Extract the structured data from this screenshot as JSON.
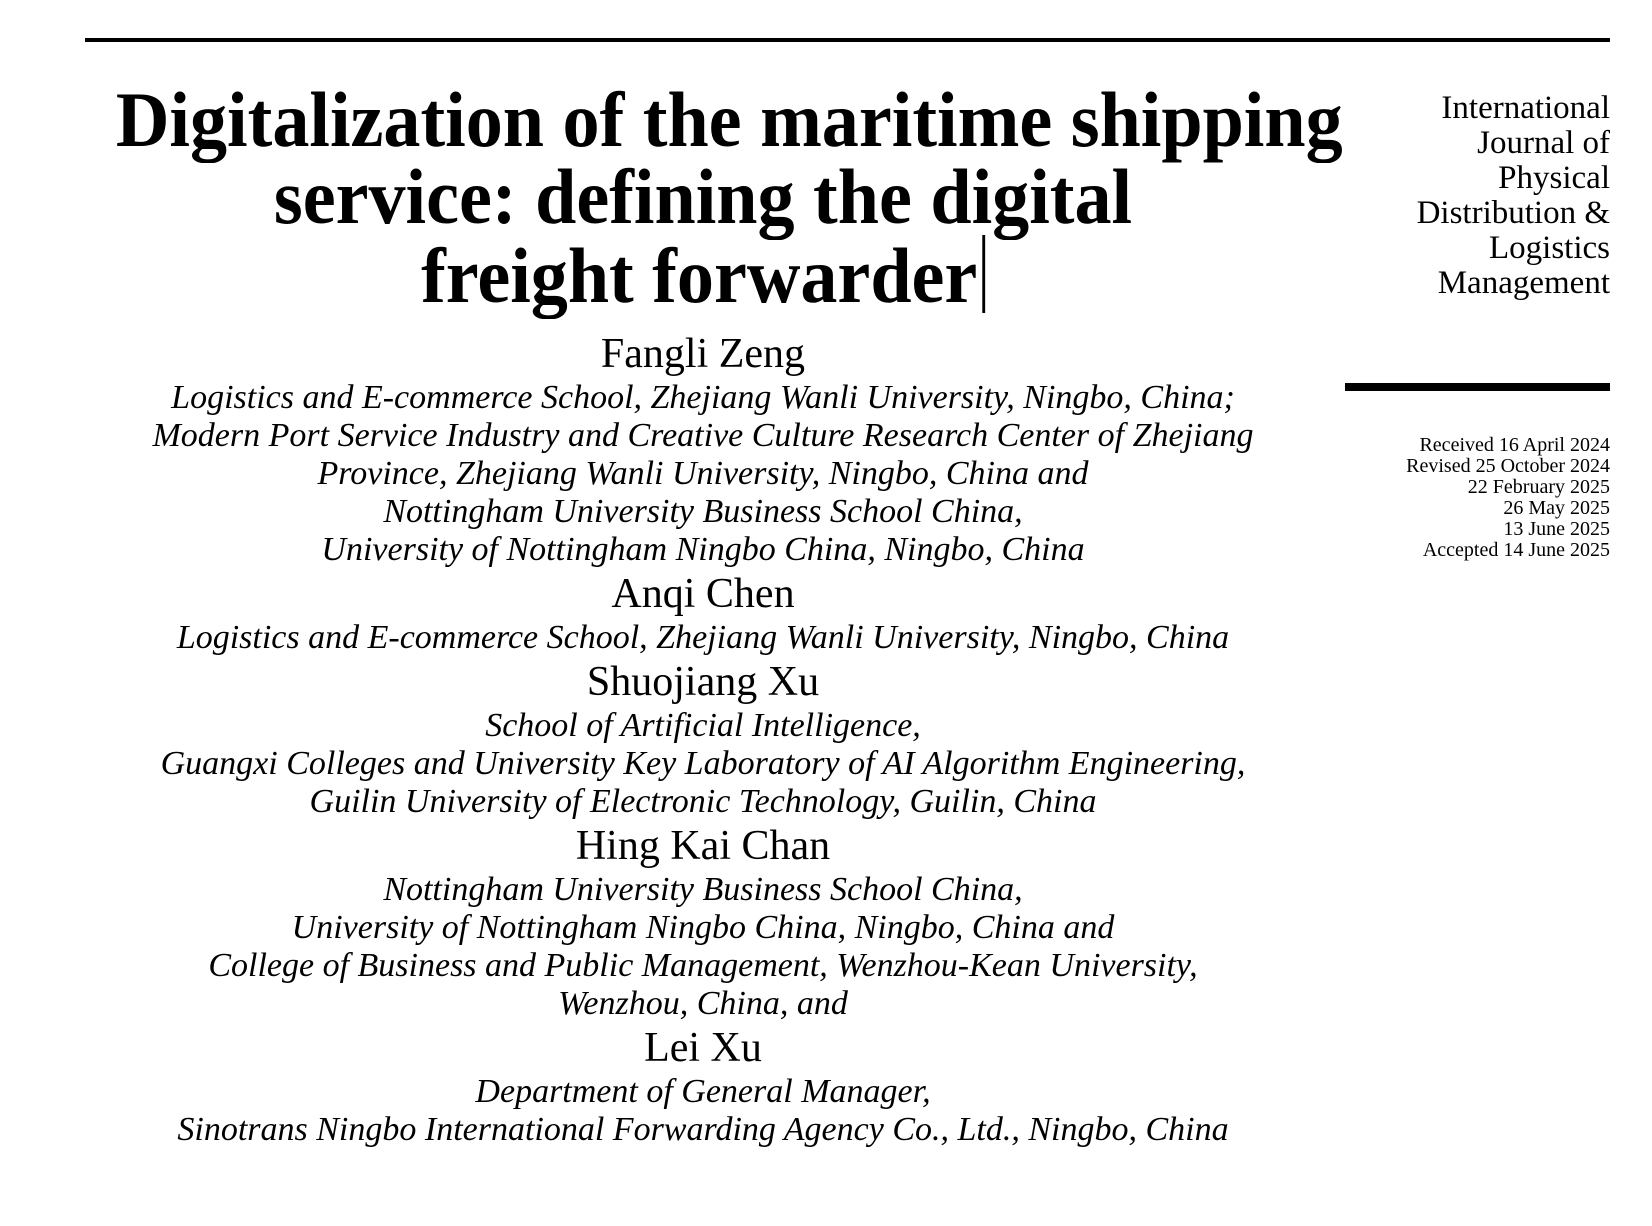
{
  "page": {
    "background": "#ffffff",
    "text_color": "#000000",
    "rule_color": "#000000"
  },
  "masthead": {
    "journal_name_lines": [
      "International",
      "Journal of",
      "Physical",
      "Distribution &",
      "Logistics",
      "Management"
    ],
    "history": [
      "Received 16 April 2024",
      "Revised 25 October 2024",
      "22 February 2025",
      "26 May 2025",
      "13 June 2025",
      "Accepted 14 June 2025"
    ]
  },
  "article": {
    "title": "Digitalization of the maritime shipping service: defining the digital freight forwarder",
    "title_lines": [
      "Digitalization of the maritime shipping",
      "service: defining the digital",
      "freight forwarder"
    ],
    "authors": [
      {
        "name": "Fangli Zeng",
        "affiliations": [
          "Logistics and E-commerce School, Zhejiang Wanli University, Ningbo, China;",
          "Modern Port Service Industry and Creative Culture Research Center of Zhejiang",
          "Province, Zhejiang Wanli University, Ningbo, China and",
          "Nottingham University Business School China,",
          "University of Nottingham Ningbo China, Ningbo, China"
        ]
      },
      {
        "name": "Anqi Chen",
        "affiliations": [
          "Logistics and E-commerce School, Zhejiang Wanli University, Ningbo, China"
        ]
      },
      {
        "name": "Shuojiang Xu",
        "affiliations": [
          "School of Artificial Intelligence,",
          "Guangxi Colleges and University Key Laboratory of AI Algorithm Engineering,",
          "Guilin University of Electronic Technology, Guilin, China"
        ]
      },
      {
        "name": "Hing Kai Chan",
        "affiliations": [
          "Nottingham University Business School China,",
          "University of Nottingham Ningbo China, Ningbo, China and",
          "College of Business and Public Management, Wenzhou-Kean University,",
          "Wenzhou, China, and"
        ]
      },
      {
        "name": "Lei Xu",
        "affiliations": [
          "Department of General Manager,",
          "Sinotrans Ningbo International Forwarding Agency Co., Ltd., Ningbo, China"
        ]
      }
    ]
  }
}
